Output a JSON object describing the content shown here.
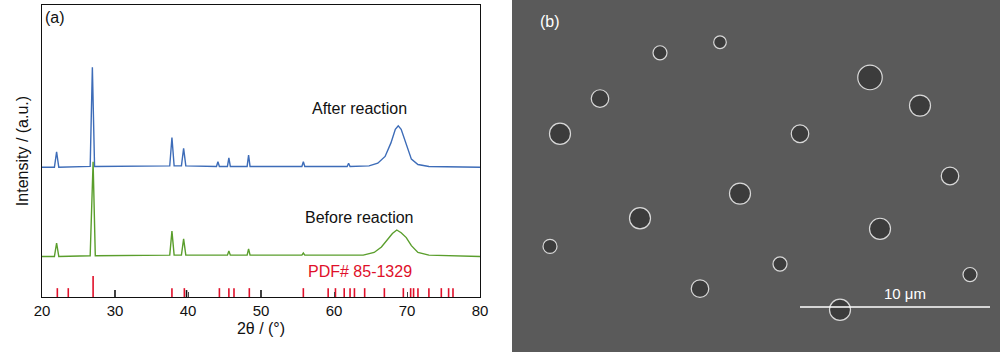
{
  "chart_data": {
    "type": "line",
    "x_label": "2θ / (°)",
    "y_label": "Intensity / (a.u.)",
    "xlim": [
      20,
      80
    ],
    "xticks": [
      20,
      30,
      40,
      50,
      60,
      70,
      80
    ],
    "ylim": [
      0,
      108
    ],
    "yticks": [],
    "tick_labels": "x",
    "grid": false,
    "series": [
      {
        "name": "After reaction",
        "color": "#3d6cb8",
        "type": "line",
        "x": [
          20,
          21.7,
          22.0,
          22.3,
          26.6,
          26.9,
          27.2,
          37.5,
          37.8,
          38.1,
          39.1,
          39.4,
          39.7,
          43.9,
          44.1,
          44.3,
          45.4,
          45.6,
          45.8,
          48.1,
          48.3,
          48.5,
          55.6,
          55.8,
          56.0,
          61.8,
          62.0,
          62.2,
          64.8,
          66.0,
          67.0,
          67.8,
          68.4,
          68.8,
          69.2,
          69.8,
          70.6,
          71.5,
          73,
          80
        ],
        "values": [
          48,
          48,
          53.7,
          48,
          48.3,
          85,
          48.3,
          48.5,
          59,
          48.5,
          48.5,
          55,
          48.5,
          48.3,
          50,
          48.3,
          48.3,
          51.5,
          48.3,
          48.3,
          52.5,
          48.3,
          48.3,
          50,
          48.3,
          48.3,
          49.5,
          48.3,
          48.5,
          49.5,
          52,
          57,
          62,
          63.3,
          62,
          57,
          51,
          49,
          48.3,
          48
        ]
      },
      {
        "name": "Before reaction",
        "color": "#5a9e2c",
        "type": "line",
        "x": [
          20,
          21.7,
          22.0,
          22.3,
          26.6,
          27.0,
          27.3,
          37.5,
          37.8,
          38.1,
          39.1,
          39.4,
          39.7,
          45.4,
          45.6,
          45.8,
          48.1,
          48.3,
          48.5,
          55.6,
          55.8,
          56.0,
          64,
          65.5,
          66.5,
          67.3,
          68.0,
          68.6,
          69.2,
          69.9,
          70.6,
          71.5,
          73,
          80
        ],
        "values": [
          15,
          15,
          20,
          15,
          15.3,
          50,
          15.3,
          15.5,
          24.4,
          15.5,
          15.5,
          21.5,
          15.5,
          15.5,
          17,
          15.5,
          15.5,
          17.8,
          15.5,
          15.5,
          16.3,
          15.5,
          15.5,
          16.5,
          18.5,
          21,
          23.5,
          24.8,
          23.8,
          22,
          19,
          16.5,
          15.5,
          15
        ]
      },
      {
        "name": "PDF# 85-1329",
        "color": "#e0102a",
        "type": "stick",
        "x": [
          22.1,
          23.6,
          27.0,
          37.8,
          39.5,
          44.3,
          45.6,
          46.3,
          48.4,
          55.8,
          59.2,
          60.2,
          61.4,
          62.2,
          62.8,
          64.2,
          66.9,
          69.5,
          70.5,
          70.9,
          71.5,
          73.0,
          74.7,
          75.7,
          76.3
        ],
        "values": [
          3.3,
          3.3,
          7.8,
          3.3,
          3.3,
          3.3,
          3.3,
          3.3,
          3.3,
          3.3,
          3.3,
          3.3,
          3.3,
          3.3,
          3.3,
          3.3,
          3.3,
          3.3,
          3.3,
          3.3,
          3.3,
          3.3,
          3.3,
          3.3,
          3.3
        ]
      },
      {
        "color": "#111111",
        "type": "stick",
        "x": [
          30.0,
          39.8,
          50.0
        ],
        "values": [
          2.6,
          2.6,
          2.6
        ]
      }
    ],
    "annotations": [
      {
        "text": "(a)",
        "x": 21.8,
        "y": 103.5
      },
      {
        "text": "After reaction",
        "x": 63.5,
        "y": 69.6
      },
      {
        "text": "Before reaction",
        "x": 63.5,
        "y": 29.3
      },
      {
        "text": "PDF# 85-1329",
        "x": 63.5,
        "y": 9.6,
        "color": "#e0102a"
      }
    ]
  },
  "image_panel": {
    "label": "(b)",
    "scale_bar_label": "10 μm"
  }
}
